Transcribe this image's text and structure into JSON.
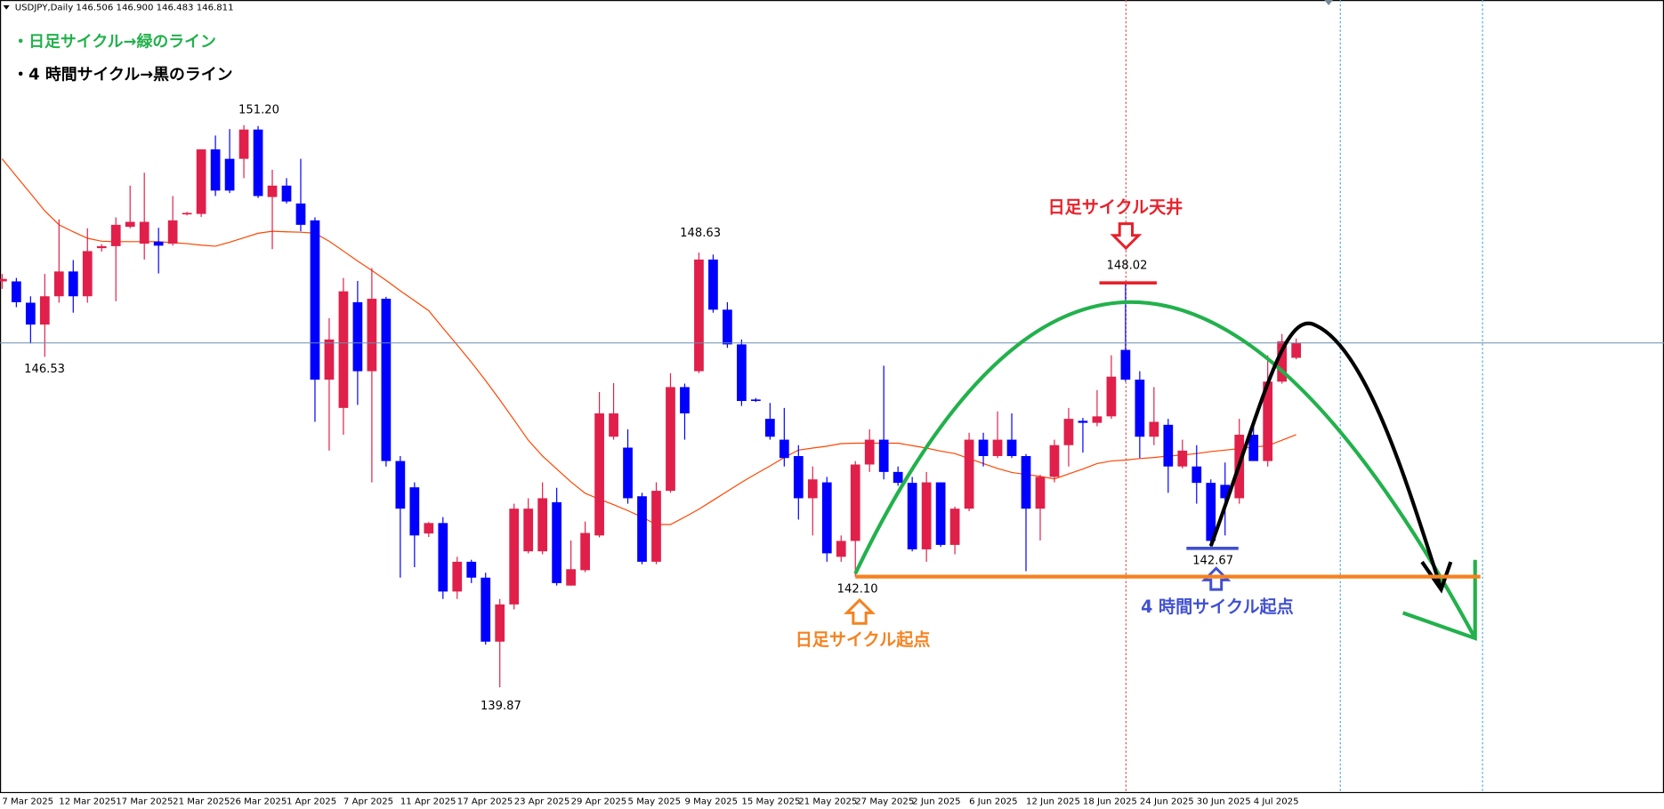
{
  "chart_data": {
    "type": "candlestick",
    "header": "USDJPY,Daily  146.506 146.900 146.483 146.811",
    "notes": [
      "・日足サイクル→緑のライン",
      "・4 時間サイクル→黒のライン"
    ],
    "labels": {
      "top": "日足サイクル天井",
      "daily_start": "日足サイクル起点",
      "h4_start": "4 時間サイクル起点"
    },
    "ylim": [
      137.76,
      153.72
    ],
    "up_color": "#e0204a",
    "down_color": "#0000ff",
    "categories": [
      "7 Mar 2025",
      null,
      null,
      null,
      "12 Mar 2025",
      null,
      null,
      null,
      "17 Mar 2025",
      null,
      null,
      null,
      "21 Mar 2025",
      null,
      null,
      null,
      "26 Mar 2025",
      null,
      null,
      null,
      "1 Apr 2025",
      null,
      null,
      null,
      "7 Apr 2025",
      null,
      null,
      null,
      "11 Apr 2025",
      null,
      null,
      null,
      "17 Apr 2025",
      null,
      null,
      null,
      "23 Apr 2025",
      null,
      null,
      null,
      "29 Apr 2025",
      null,
      null,
      null,
      "5 May 2025",
      null,
      null,
      null,
      "9 May 2025",
      null,
      null,
      null,
      "15 May 2025",
      null,
      null,
      null,
      "21 May 2025",
      null,
      null,
      null,
      "27 May 2025",
      null,
      null,
      null,
      "2 Jun 2025",
      null,
      null,
      null,
      "6 Jun 2025",
      null,
      null,
      null,
      "12 Jun 2025",
      null,
      null,
      null,
      "18 Jun 2025",
      null,
      null,
      null,
      "24 Jun 2025",
      null,
      null,
      null,
      "30 Jun 2025",
      null,
      null,
      null,
      "4 Jul 2025",
      null,
      null,
      null
    ],
    "open": [
      148.05,
      148.05,
      147.62,
      147.18,
      147.75,
      148.25,
      147.75,
      148.72,
      148.76,
      149.15,
      148.81,
      148.85,
      148.81,
      149.4,
      149.41,
      150.71,
      150.52,
      150.52,
      151.11,
      149.75,
      149.98,
      149.62,
      149.28,
      146.07,
      145.5,
      147.63,
      146.24,
      147.7,
      144.43,
      143.9,
      142.97,
      143.18,
      141.8,
      142.4,
      142.08,
      140.79,
      141.54,
      142.61,
      142.61,
      143.6,
      141.92,
      142.23,
      142.93,
      144.92,
      144.7,
      143.72,
      142.4,
      143.83,
      145.92,
      146.24,
      148.49,
      147.48,
      146.78,
      145.67,
      145.28,
      144.86,
      144.53,
      143.68,
      144.0,
      142.5,
      142.82,
      144.36,
      144.86,
      144.21,
      143.99,
      142.65,
      144.0,
      142.74,
      143.47,
      144.86,
      144.53,
      144.86,
      144.53,
      143.47,
      144.11,
      144.75,
      145.24,
      145.2,
      145.33,
      146.67,
      146.07,
      144.92,
      145.16,
      144.32,
      144.32,
      143.99,
      143.95,
      143.68,
      144.96,
      144.43,
      146.03,
      146.51
    ],
    "high": [
      148.2,
      148.12,
      147.75,
      148.2,
      149.3,
      148.48,
      149.12,
      148.8,
      149.34,
      149.98,
      150.24,
      149.13,
      149.77,
      149.45,
      150.71,
      150.99,
      151.12,
      151.2,
      151.18,
      150.3,
      150.13,
      150.52,
      149.34,
      147.31,
      148.12,
      148.06,
      148.32,
      147.74,
      144.53,
      144.0,
      143.2,
      143.3,
      142.5,
      142.44,
      142.18,
      141.65,
      143.57,
      143.68,
      144.0,
      143.89,
      142.83,
      143.21,
      145.82,
      146.0,
      145.07,
      143.79,
      144.0,
      146.2,
      145.99,
      148.63,
      148.59,
      147.63,
      146.88,
      145.7,
      145.6,
      145.5,
      144.75,
      144.32,
      144.11,
      142.93,
      144.43,
      145.07,
      146.35,
      144.32,
      144.11,
      144.21,
      144.0,
      143.51,
      145.0,
      145.0,
      145.43,
      145.39,
      144.57,
      144.15,
      144.86,
      145.5,
      145.3,
      145.86,
      146.56,
      148.02,
      146.24,
      145.92,
      145.28,
      144.86,
      144.75,
      144.06,
      144.4,
      145.28,
      145.17,
      146.56,
      146.99,
      146.9
    ],
    "low": [
      147.9,
      147.53,
      146.8,
      146.53,
      147.62,
      147.42,
      147.62,
      148.65,
      147.65,
      149.12,
      148.49,
      148.21,
      148.77,
      149.38,
      149.35,
      149.77,
      149.83,
      150.13,
      149.73,
      148.7,
      149.62,
      149.06,
      145.22,
      144.64,
      144.96,
      145.56,
      144.0,
      144.32,
      142.08,
      142.29,
      142.9,
      141.65,
      141.65,
      141.97,
      140.73,
      139.87,
      141.44,
      142.57,
      142.55,
      141.92,
      141.92,
      142.19,
      142.89,
      144.86,
      143.57,
      142.35,
      142.35,
      143.79,
      144.86,
      146.2,
      147.42,
      146.71,
      145.54,
      145.62,
      144.86,
      144.32,
      143.25,
      142.93,
      142.4,
      142.4,
      142.1,
      144.21,
      144.06,
      143.93,
      142.61,
      142.4,
      142.7,
      142.55,
      143.42,
      144.32,
      144.49,
      144.49,
      142.21,
      142.83,
      144.0,
      144.32,
      144.6,
      145.13,
      145.28,
      146.03,
      144.49,
      144.75,
      143.79,
      144.28,
      143.57,
      142.67,
      142.93,
      143.57,
      144.43,
      144.32,
      145.99,
      146.48
    ],
    "close": [
      148.1,
      147.63,
      147.18,
      147.75,
      148.25,
      147.75,
      148.66,
      148.76,
      149.19,
      149.25,
      149.25,
      148.77,
      149.28,
      149.43,
      150.71,
      149.88,
      149.88,
      151.11,
      149.77,
      149.98,
      149.66,
      149.19,
      146.07,
      146.88,
      147.85,
      146.24,
      147.7,
      144.43,
      143.47,
      142.93,
      143.18,
      141.8,
      142.4,
      142.08,
      140.79,
      141.54,
      143.47,
      143.47,
      143.68,
      141.97,
      142.25,
      142.98,
      145.39,
      145.39,
      143.68,
      142.4,
      143.83,
      145.92,
      145.39,
      148.49,
      147.48,
      146.78,
      145.64,
      145.64,
      144.92,
      144.49,
      143.68,
      144.06,
      142.57,
      142.82,
      144.36,
      144.86,
      144.21,
      143.99,
      142.65,
      144.0,
      142.74,
      143.47,
      144.86,
      144.53,
      144.86,
      144.53,
      143.47,
      144.11,
      144.75,
      145.28,
      145.2,
      145.33,
      146.13,
      146.07,
      144.92,
      145.22,
      144.32,
      144.64,
      143.99,
      142.82,
      143.68,
      144.96,
      144.43,
      146.03,
      146.84,
      146.81
    ],
    "ma": {
      "color": "#ff4500",
      "values": [
        150.52,
        150.17,
        149.82,
        149.47,
        149.19,
        149.05,
        148.92,
        148.86,
        148.85,
        148.85,
        148.85,
        148.85,
        148.83,
        148.81,
        148.78,
        148.76,
        148.84,
        148.93,
        149.02,
        149.06,
        149.05,
        149.04,
        149.02,
        148.86,
        148.66,
        148.46,
        148.27,
        148.07,
        147.86,
        147.66,
        147.46,
        147.11,
        146.77,
        146.42,
        146.05,
        145.66,
        145.26,
        144.85,
        144.53,
        144.27,
        144.01,
        143.78,
        143.66,
        143.55,
        143.43,
        143.3,
        143.15,
        143.15,
        143.3,
        143.46,
        143.64,
        143.82,
        144.0,
        144.17,
        144.33,
        144.5,
        144.65,
        144.69,
        144.73,
        144.78,
        144.79,
        144.79,
        144.79,
        144.79,
        144.74,
        144.69,
        144.63,
        144.58,
        144.48,
        144.38,
        144.28,
        144.2,
        144.16,
        144.12,
        144.07,
        144.17,
        144.27,
        144.38,
        144.43,
        144.45,
        144.48,
        144.5,
        144.53,
        144.55,
        144.58,
        144.62,
        144.65,
        144.68,
        144.71,
        144.74,
        144.85,
        144.96
      ]
    },
    "annotations": [
      {
        "value": 151.2,
        "label": "151.20"
      },
      {
        "value": 146.53,
        "label": "146.53"
      },
      {
        "value": 148.63,
        "label": "148.63"
      },
      {
        "value": 139.87,
        "label": "139.87"
      },
      {
        "value": 142.1,
        "label": "142.10"
      },
      {
        "value": 148.02,
        "label": "148.02"
      },
      {
        "value": 142.67,
        "label": "142.67"
      }
    ]
  }
}
